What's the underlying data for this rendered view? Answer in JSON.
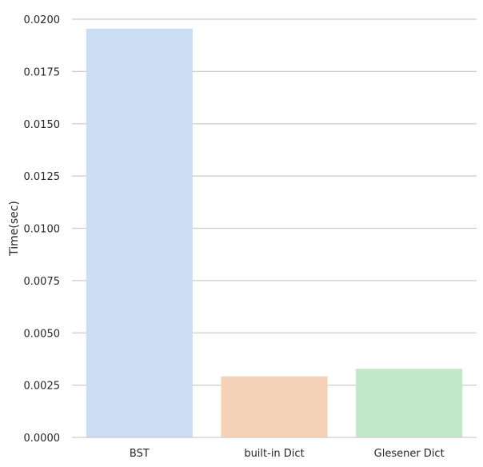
{
  "chart_data": {
    "type": "bar",
    "title": "",
    "xlabel": "",
    "ylabel": "Time(sec)",
    "categories": [
      "BST",
      "built-in Dict",
      "Glesener Dict"
    ],
    "values": [
      0.01955,
      0.00292,
      0.00328
    ],
    "colors": [
      "#cbdef4",
      "#f6d2b8",
      "#c1e8ca"
    ],
    "ylim": [
      0,
      0.02
    ],
    "yticks": [
      "0.0000",
      "0.0025",
      "0.0050",
      "0.0075",
      "0.0100",
      "0.0125",
      "0.0150",
      "0.0175",
      "0.0200"
    ],
    "grid": "horizontal",
    "grid_color": "#cccccc"
  }
}
